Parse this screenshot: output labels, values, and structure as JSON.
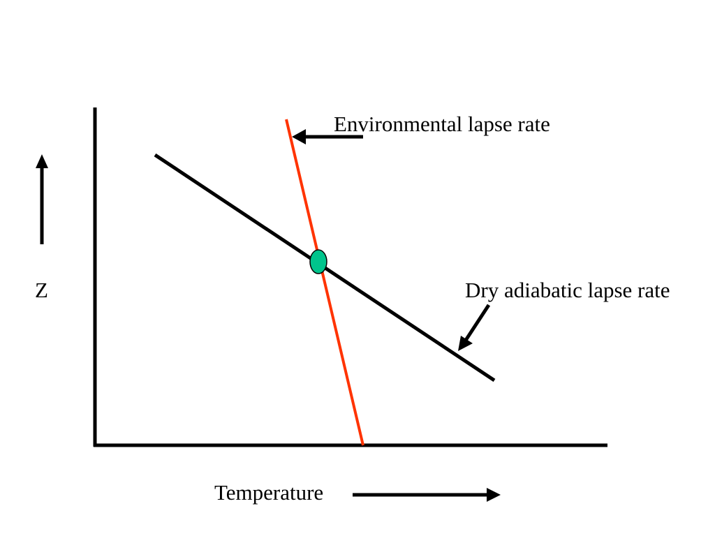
{
  "diagram": {
    "labels": {
      "environmental": "Environmental lapse rate",
      "dry_adiabatic": "Dry adiabatic lapse rate",
      "z_axis": "Z",
      "temperature_axis": "Temperature"
    },
    "colors": {
      "axes": "#000000",
      "environmental_line": "#ff3300",
      "dry_adiabatic_line": "#000000",
      "intersection_fill": "#00c48c",
      "intersection_stroke": "#000000",
      "text": "#000000",
      "background": "#ffffff"
    },
    "icons": {
      "up_arrow": "arrow-up-icon",
      "right_arrow": "arrow-right-icon",
      "env_pointer": "arrow-left-icon",
      "dry_pointer": "arrow-down-left-icon"
    }
  }
}
